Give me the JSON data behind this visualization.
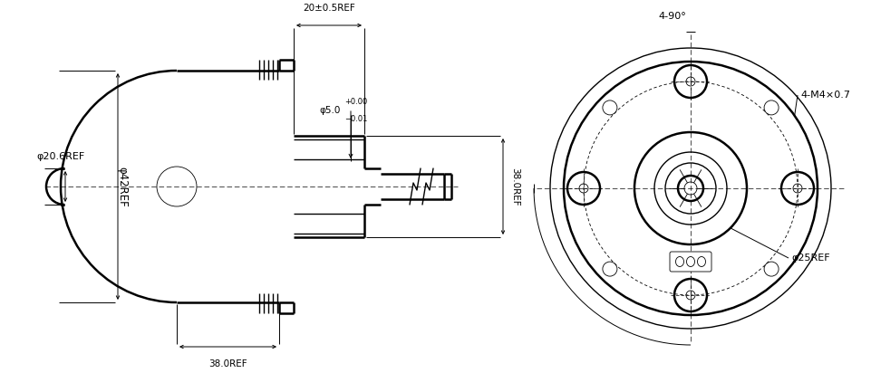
{
  "bg_color": "#ffffff",
  "line_color": "#000000",
  "figsize": [
    9.62,
    4.12
  ],
  "dpi": 100,
  "annotations": {
    "phi20_6": "φ20.6REF",
    "phi42": "φ42REF",
    "phi5": "φ5.0",
    "dim20": "20±0.5REF",
    "dim38_side": "38.0REF",
    "dim38_bot": "38.0REF",
    "angle": "4-90°",
    "m4": "4-M4×0.7",
    "phi25": "φ25REF"
  },
  "lw_thick": 1.8,
  "lw_med": 1.0,
  "lw_thin": 0.6,
  "lw_dim": 0.7
}
